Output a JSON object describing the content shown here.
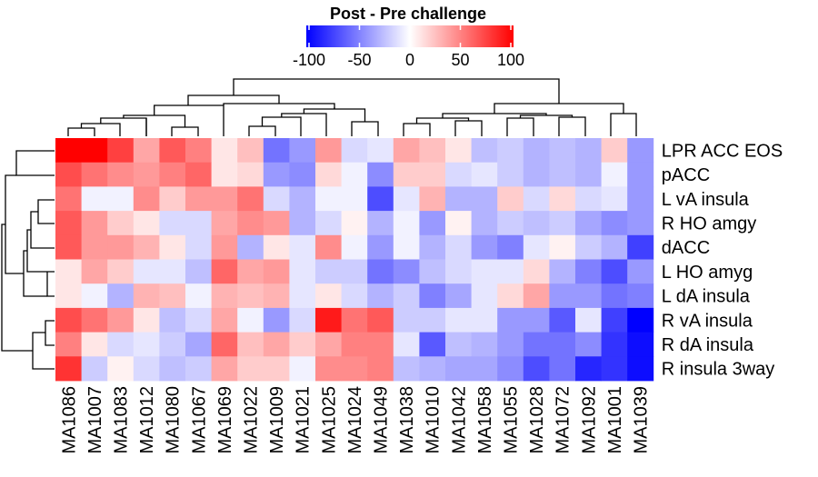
{
  "chart_data": {
    "type": "heatmap",
    "title": "Post - Pre challenge",
    "legend": {
      "position": "top",
      "min": -100,
      "max": 100,
      "ticks": [
        -100,
        -50,
        0,
        50,
        100
      ],
      "tick_labels": [
        "-100",
        "-50",
        "0",
        "50",
        "100"
      ],
      "low_color": "#0000ff",
      "mid_color": "#ffffff",
      "high_color": "#ff0000"
    },
    "columns": [
      "MA1086",
      "MA1007",
      "MA1083",
      "MA1012",
      "MA1080",
      "MA1067",
      "MA1069",
      "MA1022",
      "MA1009",
      "MA1021",
      "MA1025",
      "MA1024",
      "MA1049",
      "MA1038",
      "MA1010",
      "MA1042",
      "MA1058",
      "MA1055",
      "MA1028",
      "MA1072",
      "MA1092",
      "MA1001",
      "MA1039"
    ],
    "rows": [
      "LPR ACC EOS",
      "pACC",
      "L vA insula",
      "R HO amgy",
      "dACC",
      "L HO amyg",
      "L dA insula",
      "R vA insula",
      "R dA insula",
      "R insula 3way"
    ],
    "values": [
      [
        100,
        100,
        75,
        35,
        65,
        50,
        10,
        25,
        -55,
        -40,
        40,
        -15,
        -10,
        35,
        25,
        10,
        -25,
        -20,
        -30,
        -25,
        -30,
        20,
        -40
      ],
      [
        70,
        55,
        45,
        40,
        50,
        60,
        10,
        15,
        -40,
        -45,
        15,
        -5,
        -45,
        20,
        20,
        -15,
        -10,
        -20,
        -30,
        -25,
        -30,
        -5,
        -40
      ],
      [
        55,
        -5,
        -5,
        45,
        20,
        40,
        40,
        55,
        -15,
        -30,
        -5,
        -5,
        -70,
        -10,
        30,
        -30,
        -30,
        20,
        -15,
        15,
        -15,
        -10,
        -40
      ],
      [
        65,
        40,
        20,
        10,
        -15,
        -15,
        35,
        45,
        40,
        -30,
        -15,
        5,
        -30,
        -5,
        -40,
        5,
        -30,
        -20,
        -25,
        -20,
        -35,
        -45,
        -40
      ],
      [
        65,
        40,
        40,
        30,
        10,
        -15,
        40,
        -30,
        10,
        -10,
        45,
        -5,
        -40,
        -5,
        -30,
        -15,
        -40,
        -50,
        -10,
        5,
        -20,
        -30,
        -75
      ],
      [
        10,
        35,
        20,
        -10,
        -10,
        -25,
        60,
        35,
        40,
        -10,
        -20,
        -20,
        -55,
        -45,
        -25,
        -15,
        -10,
        -10,
        15,
        -30,
        -50,
        -70,
        -40
      ],
      [
        10,
        -5,
        -30,
        30,
        25,
        -5,
        30,
        25,
        30,
        -10,
        10,
        -15,
        -30,
        -20,
        -50,
        -35,
        -10,
        15,
        35,
        -40,
        -40,
        -55,
        -50
      ],
      [
        70,
        55,
        40,
        10,
        -25,
        -15,
        35,
        -5,
        -40,
        -15,
        90,
        55,
        65,
        -20,
        -20,
        -10,
        -10,
        -40,
        -40,
        -65,
        -10,
        -75,
        -100
      ],
      [
        50,
        10,
        -15,
        -10,
        -20,
        -35,
        60,
        25,
        35,
        20,
        35,
        50,
        50,
        -10,
        -65,
        -25,
        -30,
        -40,
        -55,
        -55,
        -45,
        -80,
        -95
      ],
      [
        80,
        -20,
        5,
        -15,
        -25,
        -20,
        35,
        20,
        20,
        -5,
        45,
        45,
        50,
        -25,
        -30,
        -35,
        -35,
        -45,
        -70,
        -55,
        -85,
        -80,
        -95
      ]
    ]
  }
}
